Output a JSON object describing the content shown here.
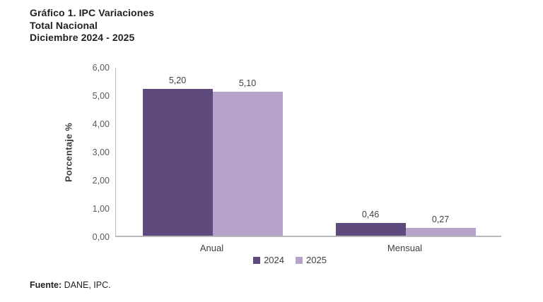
{
  "header": {
    "title_lines": [
      "Gráfico 1. IPC Variaciones",
      "Total Nacional",
      "Diciembre 2024 - 2025"
    ]
  },
  "chart_data": {
    "type": "bar",
    "categories": [
      "Anual",
      "Mensual"
    ],
    "series": [
      {
        "name": "2024",
        "color": "#5f4a7e",
        "values": [
          5.2,
          0.46
        ],
        "value_labels": [
          "5,20",
          "0,46"
        ]
      },
      {
        "name": "2025",
        "color": "#b6a2ca",
        "values": [
          5.1,
          0.27
        ],
        "value_labels": [
          "5,10",
          "0,27"
        ]
      }
    ],
    "title": "Gráfico 1. IPC Variaciones - Total Nacional - Diciembre 2024 - 2025",
    "xlabel": "",
    "ylabel": "Porcentaje %",
    "ylim": [
      0,
      6
    ],
    "ytick_step": 1,
    "ytick_labels": [
      "0,00",
      "1,00",
      "2,00",
      "3,00",
      "4,00",
      "5,00",
      "6,00"
    ],
    "grid": false,
    "legend_position": "bottom"
  },
  "footer": {
    "label": "Fuente:",
    "text": " DANE, IPC."
  },
  "colors": {
    "series_2024": "#5f4a7e",
    "series_2025": "#b6a2ca",
    "axis_line": "#b9b9b9",
    "text_dark": "#231f20",
    "text_gray": "#404040"
  }
}
